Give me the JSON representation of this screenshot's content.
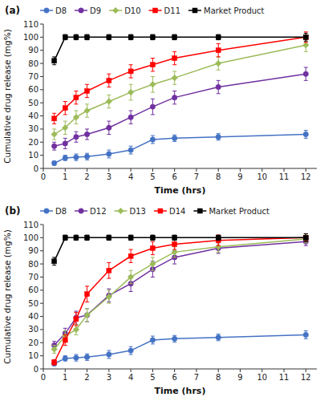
{
  "chart_data": [
    {
      "type": "line",
      "title": "(a)",
      "x": [
        0.5,
        1,
        1.5,
        2,
        3,
        4,
        5,
        6,
        8,
        12
      ],
      "series": [
        {
          "name": "D8",
          "color": "#4472C4",
          "marker": "circle",
          "values": [
            4,
            8,
            8.5,
            9,
            11,
            14,
            22,
            23,
            24,
            26
          ],
          "errors": [
            1.5,
            2,
            2.5,
            2.5,
            3,
            3,
            3,
            2.5,
            2.5,
            3
          ]
        },
        {
          "name": "D9",
          "color": "#7030A0",
          "marker": "circle",
          "values": [
            17,
            19,
            24,
            26,
            31,
            39,
            47,
            54,
            62,
            72
          ],
          "errors": [
            3,
            4,
            4,
            4,
            5,
            5,
            6,
            5,
            5,
            5
          ]
        },
        {
          "name": "D10",
          "color": "#9BBB59",
          "marker": "diamond",
          "values": [
            26,
            31,
            39,
            44,
            51,
            58,
            64,
            69,
            80,
            94
          ],
          "errors": [
            4,
            5,
            5,
            5,
            5,
            6,
            6,
            5,
            5,
            5
          ]
        },
        {
          "name": "D11",
          "color": "#FF0000",
          "marker": "square",
          "values": [
            38,
            46,
            54,
            59,
            67,
            74,
            79,
            84,
            90,
            100
          ],
          "errors": [
            4,
            5,
            5,
            5,
            5,
            5,
            5,
            5,
            5,
            4
          ]
        },
        {
          "name": "Market Product",
          "color": "#000000",
          "marker": "square",
          "values": [
            82,
            100,
            100,
            100,
            100,
            100,
            100,
            100,
            100,
            100
          ],
          "errors": [
            3,
            2,
            2,
            2,
            2,
            2,
            2,
            2,
            2,
            3
          ]
        }
      ],
      "xlabel": "Time (hrs)",
      "ylabel": "Cumulative drug release (mg%)",
      "xlim": [
        0,
        12.5
      ],
      "ylim": [
        0,
        110
      ],
      "xticks": [
        0,
        1,
        2,
        3,
        4,
        5,
        6,
        7,
        8,
        9,
        10,
        11,
        12
      ],
      "yticks": [
        0,
        10,
        20,
        30,
        40,
        50,
        60,
        70,
        80,
        90,
        100,
        110
      ],
      "legend": "top",
      "grid": false
    },
    {
      "type": "line",
      "title": "(b)",
      "x": [
        0.5,
        1,
        1.5,
        2,
        3,
        4,
        5,
        6,
        8,
        12
      ],
      "series": [
        {
          "name": "D8",
          "color": "#4472C4",
          "marker": "circle",
          "values": [
            4,
            8,
            8.5,
            9,
            11,
            14,
            22,
            23,
            24,
            26
          ],
          "errors": [
            1.5,
            2,
            2.5,
            2.5,
            3,
            3,
            3,
            2.5,
            2.5,
            3
          ]
        },
        {
          "name": "D12",
          "color": "#7030A0",
          "marker": "circle",
          "values": [
            18,
            27,
            39,
            41,
            56,
            65,
            76,
            85,
            92,
            97
          ],
          "errors": [
            3,
            4,
            5,
            5,
            5,
            6,
            6,
            5,
            4,
            3
          ]
        },
        {
          "name": "D13",
          "color": "#9BBB59",
          "marker": "diamond",
          "values": [
            15,
            25,
            30,
            41,
            55,
            70,
            80,
            89,
            93,
            99
          ],
          "errors": [
            3,
            4,
            4,
            5,
            5,
            5,
            5,
            4,
            4,
            3
          ]
        },
        {
          "name": "D14",
          "color": "#FF0000",
          "marker": "square",
          "values": [
            5,
            22,
            38,
            57,
            75,
            86,
            92,
            95,
            98,
            100
          ],
          "errors": [
            2,
            4,
            5,
            6,
            6,
            5,
            5,
            4,
            4,
            3
          ]
        },
        {
          "name": "Market Product",
          "color": "#000000",
          "marker": "square",
          "values": [
            82,
            100,
            100,
            100,
            100,
            100,
            100,
            100,
            100,
            100
          ],
          "errors": [
            3,
            2,
            2,
            2,
            2,
            2,
            2,
            2,
            2,
            3
          ]
        }
      ],
      "xlabel": "Time (hrs)",
      "ylabel": "Cumulative drug release (mg%)",
      "xlim": [
        0,
        12.5
      ],
      "ylim": [
        0,
        110
      ],
      "xticks": [
        0,
        1,
        2,
        3,
        4,
        5,
        6,
        7,
        8,
        9,
        10,
        11,
        12
      ],
      "yticks": [
        0,
        10,
        20,
        30,
        40,
        50,
        60,
        70,
        80,
        90,
        100,
        110
      ],
      "legend": "top",
      "grid": false
    }
  ]
}
